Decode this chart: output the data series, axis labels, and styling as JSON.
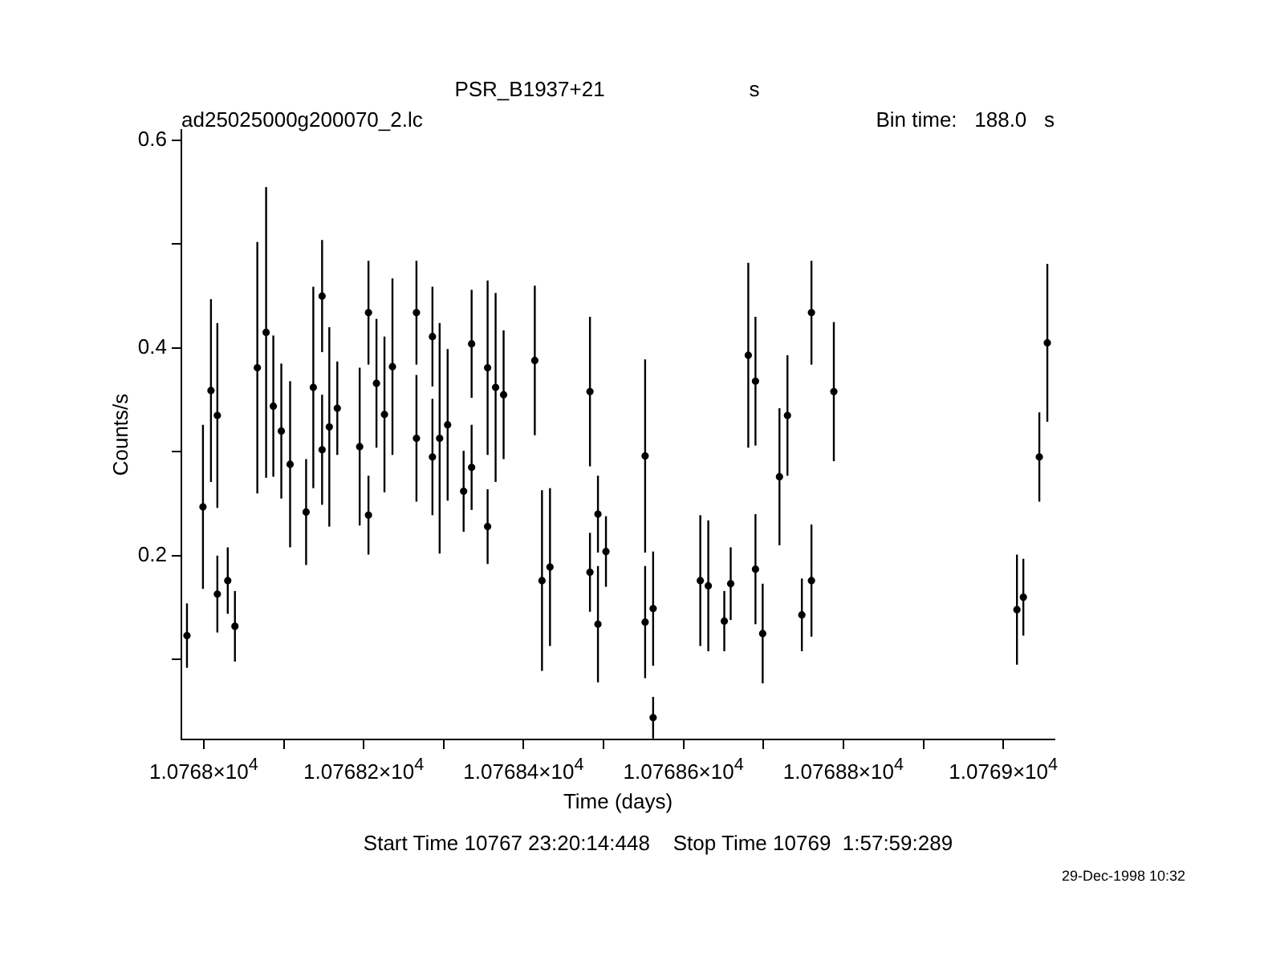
{
  "chart_data": {
    "type": "scatter",
    "title": "PSR_B1937+21",
    "subtitle": "ad25025000g200070_2.lc",
    "xlabel": "Time (days)",
    "ylabel": "Counts/s",
    "annotations": [
      "s",
      "Bin time:   188.0   s",
      "Start Time 10767 23:20:14:448    Stop Time 10769  1:57:59:289",
      "29-Dec-1998 10:32"
    ],
    "series": [
      {
        "color": "#000000",
        "x": [
          10767.979,
          10767.999,
          10768.009,
          10768.017,
          10768.017,
          10768.03,
          10768.039,
          10768.067,
          10768.078,
          10768.087,
          10768.097,
          10768.108,
          10768.128,
          10768.137,
          10768.148,
          10768.148,
          10768.157,
          10768.167,
          10768.195,
          10768.206,
          10768.206,
          10768.216,
          10768.226,
          10768.236,
          10768.266,
          10768.266,
          10768.286,
          10768.286,
          10768.295,
          10768.305,
          10768.325,
          10768.335,
          10768.335,
          10768.355,
          10768.355,
          10768.365,
          10768.375,
          10768.414,
          10768.423,
          10768.433,
          10768.483,
          10768.483,
          10768.493,
          10768.493,
          10768.503,
          10768.552,
          10768.552,
          10768.562,
          10768.562,
          10768.621,
          10768.631,
          10768.651,
          10768.659,
          10768.681,
          10768.69,
          10768.69,
          10768.699,
          10768.72,
          10768.73,
          10768.748,
          10768.76,
          10768.76,
          10768.788,
          10769.017,
          10769.025,
          10769.045,
          10769.055
        ],
        "values": [
          0.123,
          0.247,
          0.359,
          0.335,
          0.163,
          0.176,
          0.132,
          0.381,
          0.415,
          0.344,
          0.32,
          0.288,
          0.242,
          0.362,
          0.45,
          0.302,
          0.324,
          0.342,
          0.305,
          0.434,
          0.239,
          0.366,
          0.336,
          0.382,
          0.434,
          0.313,
          0.411,
          0.295,
          0.313,
          0.326,
          0.262,
          0.404,
          0.285,
          0.381,
          0.228,
          0.362,
          0.355,
          0.388,
          0.176,
          0.189,
          0.358,
          0.184,
          0.24,
          0.134,
          0.204,
          0.296,
          0.136,
          0.149,
          0.044,
          0.176,
          0.171,
          0.137,
          0.173,
          0.393,
          0.368,
          0.187,
          0.125,
          0.276,
          0.335,
          0.143,
          0.434,
          0.176,
          0.358,
          0.148,
          0.16,
          0.295,
          0.405
        ],
        "errors": [
          0.031,
          0.079,
          0.088,
          0.089,
          0.037,
          0.032,
          0.034,
          0.121,
          0.14,
          0.068,
          0.065,
          0.08,
          0.051,
          0.097,
          0.054,
          0.053,
          0.096,
          0.045,
          0.076,
          0.05,
          0.038,
          0.062,
          0.075,
          0.085,
          0.05,
          0.061,
          0.048,
          0.056,
          0.111,
          0.073,
          0.039,
          0.052,
          0.041,
          0.084,
          0.036,
          0.091,
          0.062,
          0.072,
          0.087,
          0.076,
          0.072,
          0.038,
          0.037,
          0.056,
          0.034,
          0.093,
          0.054,
          0.055,
          0.02,
          0.063,
          0.063,
          0.029,
          0.035,
          0.089,
          0.062,
          0.053,
          0.048,
          0.066,
          0.058,
          0.035,
          0.05,
          0.054,
          0.067,
          0.053,
          0.037,
          0.043,
          0.076
        ]
      }
    ],
    "xlim": [
      10767.972,
      10769.064
    ],
    "xticks": [
      {
        "value": 10768,
        "label": "1.0768×10$^{4}$"
      },
      {
        "value": 10768.1,
        "label": null
      },
      {
        "value": 10768.2,
        "label": "1.07682×10$^{4}$"
      },
      {
        "value": 10768.3,
        "label": null
      },
      {
        "value": 10768.4,
        "label": "1.07684×10$^{4}$"
      },
      {
        "value": 10768.5,
        "label": null
      },
      {
        "value": 10768.6,
        "label": "1.07686×10$^{4}$"
      },
      {
        "value": 10768.7,
        "label": null
      },
      {
        "value": 10768.8,
        "label": "1.07688×10$^{4}$"
      },
      {
        "value": 10768.9,
        "label": null
      },
      {
        "value": 10769,
        "label": "1.0769×10$^{4}$"
      }
    ],
    "ylim": [
      0.023,
      0.61
    ],
    "yticks": [
      {
        "value": 0.1,
        "label": null
      },
      {
        "value": 0.2,
        "label": "0.2"
      },
      {
        "value": 0.3,
        "label": null
      },
      {
        "value": 0.4,
        "label": "0.4"
      },
      {
        "value": 0.5,
        "label": null
      },
      {
        "value": 0.6,
        "label": "0.6"
      }
    ],
    "marker": "circle",
    "grid": false,
    "legend": false
  }
}
